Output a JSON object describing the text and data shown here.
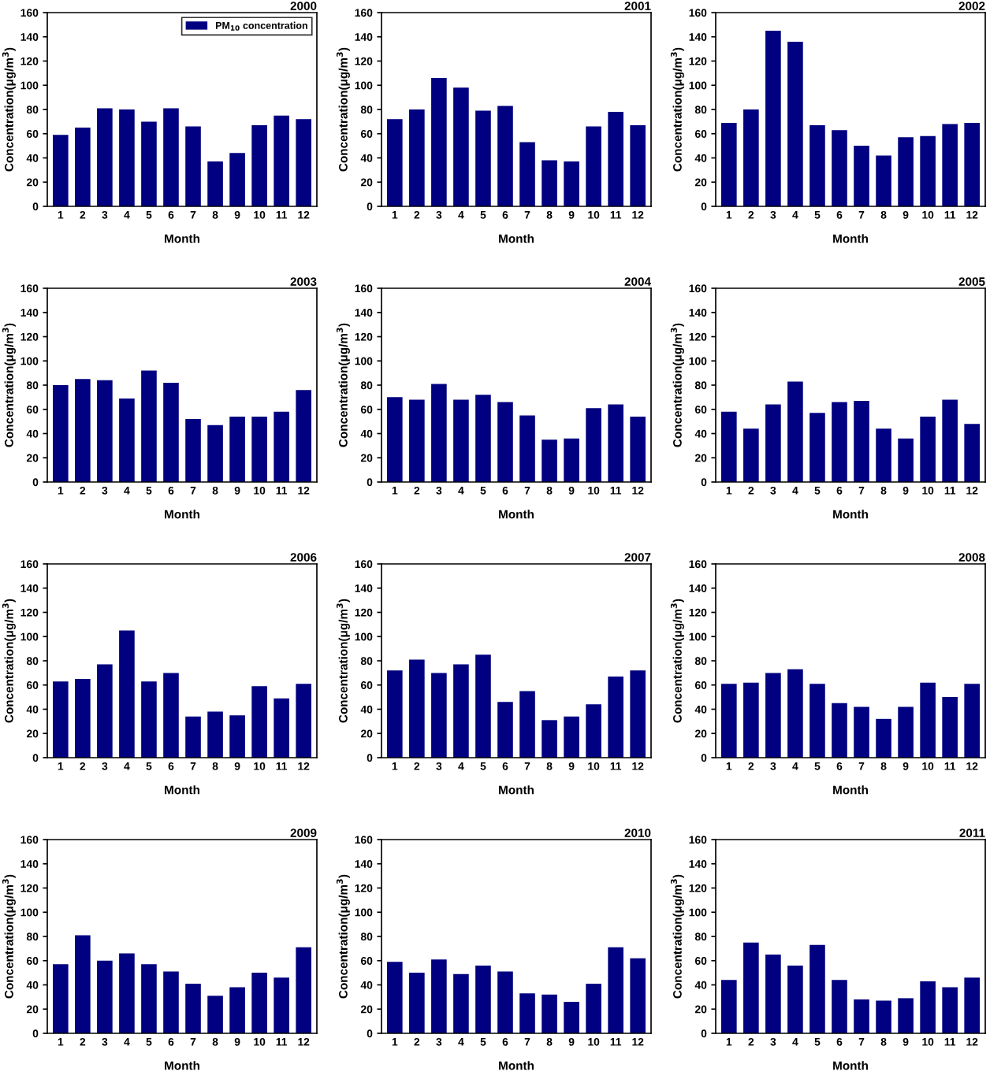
{
  "chart_data": [
    {
      "type": "bar",
      "title": "2000",
      "xlabel": "Month",
      "ylabel": "Concentration(μg/m$^{3}$)",
      "categories": [
        "1",
        "2",
        "3",
        "4",
        "5",
        "6",
        "7",
        "8",
        "9",
        "10",
        "11",
        "12"
      ],
      "series": [
        {
          "name": "PM$_{10}$ concentration",
          "color": "#000080",
          "values": [
            59,
            65,
            81,
            80,
            70,
            81,
            66,
            37,
            44,
            67,
            75,
            72
          ]
        }
      ],
      "ylim": [
        0,
        160
      ],
      "yticks": [
        0,
        20,
        40,
        60,
        80,
        100,
        120,
        140,
        160
      ],
      "legend": "top right"
    },
    {
      "type": "bar",
      "title": "2001",
      "xlabel": "Month",
      "ylabel": "Concentration(μg/m$^{3}$)",
      "categories": [
        "1",
        "2",
        "3",
        "4",
        "5",
        "6",
        "7",
        "8",
        "9",
        "10",
        "11",
        "12"
      ],
      "series": [
        {
          "color": "#000080",
          "values": [
            72,
            80,
            106,
            98,
            79,
            83,
            53,
            38,
            37,
            66,
            78,
            67
          ]
        }
      ],
      "ylim": [
        0,
        160
      ],
      "yticks": [
        0,
        20,
        40,
        60,
        80,
        100,
        120,
        140,
        160
      ]
    },
    {
      "type": "bar",
      "title": "2002",
      "xlabel": "Month",
      "ylabel": "Concentration(μg/m$^{3}$)",
      "categories": [
        "1",
        "2",
        "3",
        "4",
        "5",
        "6",
        "7",
        "8",
        "9",
        "10",
        "11",
        "12"
      ],
      "series": [
        {
          "color": "#000080",
          "values": [
            69,
            80,
            145,
            136,
            67,
            63,
            50,
            42,
            57,
            58,
            68,
            69
          ]
        }
      ],
      "ylim": [
        0,
        160
      ],
      "yticks": [
        0,
        20,
        40,
        60,
        80,
        100,
        120,
        140,
        160
      ]
    },
    {
      "type": "bar",
      "title": "2003",
      "xlabel": "Month",
      "ylabel": "Concentration(μg/m$^{3}$)",
      "categories": [
        "1",
        "2",
        "3",
        "4",
        "5",
        "6",
        "7",
        "8",
        "9",
        "10",
        "11",
        "12"
      ],
      "series": [
        {
          "color": "#000080",
          "values": [
            80,
            85,
            84,
            69,
            92,
            82,
            52,
            47,
            54,
            54,
            58,
            76
          ]
        }
      ],
      "ylim": [
        0,
        160
      ],
      "yticks": [
        0,
        20,
        40,
        60,
        80,
        100,
        120,
        140,
        160
      ]
    },
    {
      "type": "bar",
      "title": "2004",
      "xlabel": "Month",
      "ylabel": "Concentration(μg/m$^{3}$)",
      "categories": [
        "1",
        "2",
        "3",
        "4",
        "5",
        "6",
        "7",
        "8",
        "9",
        "10",
        "11",
        "12"
      ],
      "series": [
        {
          "color": "#000080",
          "values": [
            70,
            68,
            81,
            68,
            72,
            66,
            55,
            35,
            36,
            61,
            64,
            54
          ]
        }
      ],
      "ylim": [
        0,
        160
      ],
      "yticks": [
        0,
        20,
        40,
        60,
        80,
        100,
        120,
        140,
        160
      ]
    },
    {
      "type": "bar",
      "title": "2005",
      "xlabel": "Month",
      "ylabel": "Concentration(μg/m$^{3}$)",
      "categories": [
        "1",
        "2",
        "3",
        "4",
        "5",
        "6",
        "7",
        "8",
        "9",
        "10",
        "11",
        "12"
      ],
      "series": [
        {
          "color": "#000080",
          "values": [
            58,
            44,
            64,
            83,
            57,
            66,
            67,
            44,
            36,
            54,
            68,
            48
          ]
        }
      ],
      "ylim": [
        0,
        160
      ],
      "yticks": [
        0,
        20,
        40,
        60,
        80,
        100,
        120,
        140,
        160
      ]
    },
    {
      "type": "bar",
      "title": "2006",
      "xlabel": "Month",
      "ylabel": "Concentration(μg/m$^{3}$)",
      "categories": [
        "1",
        "2",
        "3",
        "4",
        "5",
        "6",
        "7",
        "8",
        "9",
        "10",
        "11",
        "12"
      ],
      "series": [
        {
          "color": "#000080",
          "values": [
            63,
            65,
            77,
            105,
            63,
            70,
            34,
            38,
            35,
            59,
            49,
            61
          ]
        }
      ],
      "ylim": [
        0,
        160
      ],
      "yticks": [
        0,
        20,
        40,
        60,
        80,
        100,
        120,
        140,
        160
      ]
    },
    {
      "type": "bar",
      "title": "2007",
      "xlabel": "Month",
      "ylabel": "Concentration(μg/m$^{3}$)",
      "categories": [
        "1",
        "2",
        "3",
        "4",
        "5",
        "6",
        "7",
        "8",
        "9",
        "10",
        "11",
        "12"
      ],
      "series": [
        {
          "color": "#000080",
          "values": [
            72,
            81,
            70,
            77,
            85,
            46,
            55,
            31,
            34,
            44,
            67,
            72
          ]
        }
      ],
      "ylim": [
        0,
        160
      ],
      "yticks": [
        0,
        20,
        40,
        60,
        80,
        100,
        120,
        140,
        160
      ]
    },
    {
      "type": "bar",
      "title": "2008",
      "xlabel": "Month",
      "ylabel": "Concentration(μg/m$^{3}$)",
      "categories": [
        "1",
        "2",
        "3",
        "4",
        "5",
        "6",
        "7",
        "8",
        "9",
        "10",
        "11",
        "12"
      ],
      "series": [
        {
          "color": "#000080",
          "values": [
            61,
            62,
            70,
            73,
            61,
            45,
            42,
            32,
            42,
            62,
            50,
            61
          ]
        }
      ],
      "ylim": [
        0,
        160
      ],
      "yticks": [
        0,
        20,
        40,
        60,
        80,
        100,
        120,
        140,
        160
      ]
    },
    {
      "type": "bar",
      "title": "2009",
      "xlabel": "Month",
      "ylabel": "Concentration(μg/m$^{3}$)",
      "categories": [
        "1",
        "2",
        "3",
        "4",
        "5",
        "6",
        "7",
        "8",
        "9",
        "10",
        "11",
        "12"
      ],
      "series": [
        {
          "color": "#000080",
          "values": [
            57,
            81,
            60,
            66,
            57,
            51,
            41,
            31,
            38,
            50,
            46,
            71
          ]
        }
      ],
      "ylim": [
        0,
        160
      ],
      "yticks": [
        0,
        20,
        40,
        60,
        80,
        100,
        120,
        140,
        160
      ]
    },
    {
      "type": "bar",
      "title": "2010",
      "xlabel": "Month",
      "ylabel": "Concentration(μg/m$^{3}$)",
      "categories": [
        "1",
        "2",
        "3",
        "4",
        "5",
        "6",
        "7",
        "8",
        "9",
        "10",
        "11",
        "12"
      ],
      "series": [
        {
          "color": "#000080",
          "values": [
            59,
            50,
            61,
            49,
            56,
            51,
            33,
            32,
            26,
            41,
            71,
            62
          ]
        }
      ],
      "ylim": [
        0,
        160
      ],
      "yticks": [
        0,
        20,
        40,
        60,
        80,
        100,
        120,
        140,
        160
      ]
    },
    {
      "type": "bar",
      "title": "2011",
      "xlabel": "Month",
      "ylabel": "Concentration(μg/m$^{3}$)",
      "categories": [
        "1",
        "2",
        "3",
        "4",
        "5",
        "6",
        "7",
        "8",
        "9",
        "10",
        "11",
        "12"
      ],
      "series": [
        {
          "color": "#000080",
          "values": [
            44,
            75,
            65,
            56,
            73,
            44,
            28,
            27,
            29,
            43,
            38,
            46
          ]
        }
      ],
      "ylim": [
        0,
        160
      ],
      "yticks": [
        0,
        20,
        40,
        60,
        80,
        100,
        120,
        140,
        160
      ]
    }
  ]
}
